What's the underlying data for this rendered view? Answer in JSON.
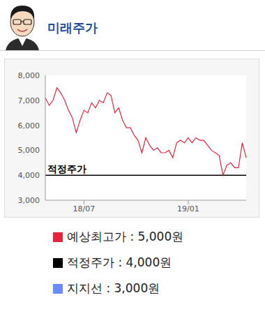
{
  "header": {
    "title": "미래주가"
  },
  "chart_data": {
    "type": "line",
    "categories": [
      null,
      null,
      null,
      null,
      null,
      null,
      null,
      null,
      null,
      null,
      "18/07",
      null,
      null,
      null,
      null,
      null,
      null,
      null,
      null,
      null,
      null,
      null,
      null,
      null,
      null,
      null,
      null,
      null,
      null,
      null,
      null,
      null,
      null,
      null,
      null,
      null,
      null,
      "19/01",
      null,
      null,
      null,
      null,
      null,
      null,
      null,
      null,
      null,
      null,
      null,
      null,
      null,
      null,
      null
    ],
    "values": [
      7100,
      6800,
      7000,
      7500,
      7300,
      7000,
      6600,
      6300,
      5700,
      6200,
      6600,
      6500,
      6900,
      6700,
      7000,
      6900,
      7300,
      7200,
      6500,
      6700,
      6200,
      5900,
      5900,
      5600,
      5400,
      4900,
      5500,
      5200,
      5000,
      5100,
      4900,
      4900,
      5000,
      4700,
      5300,
      5400,
      5300,
      5500,
      5300,
      5500,
      5400,
      5400,
      5200,
      5000,
      4900,
      4800,
      4000,
      4400,
      4500,
      4300,
      4300,
      5300,
      4700
    ],
    "color": "#e8243c",
    "ylim": [
      3000,
      8000
    ],
    "yticks": [
      {
        "value": 3000,
        "label": "3,000"
      },
      {
        "value": 4000,
        "label": "4,000"
      },
      {
        "value": 5000,
        "label": "5,000"
      },
      {
        "value": 6000,
        "label": "6,000"
      },
      {
        "value": 7000,
        "label": "7,000"
      },
      {
        "value": 8000,
        "label": "8,000"
      }
    ],
    "reference_lines": [
      {
        "label": "적정주가",
        "value": 4000,
        "color": "#000000"
      }
    ]
  },
  "legend_items": [
    {
      "text": "예상최고가 : 5,000원",
      "color": "#e8243c"
    },
    {
      "text": "적정주가 : 4,000원",
      "color": "#000000"
    },
    {
      "text": "지지선 : 3,000원",
      "color": "#6b8cff"
    }
  ]
}
